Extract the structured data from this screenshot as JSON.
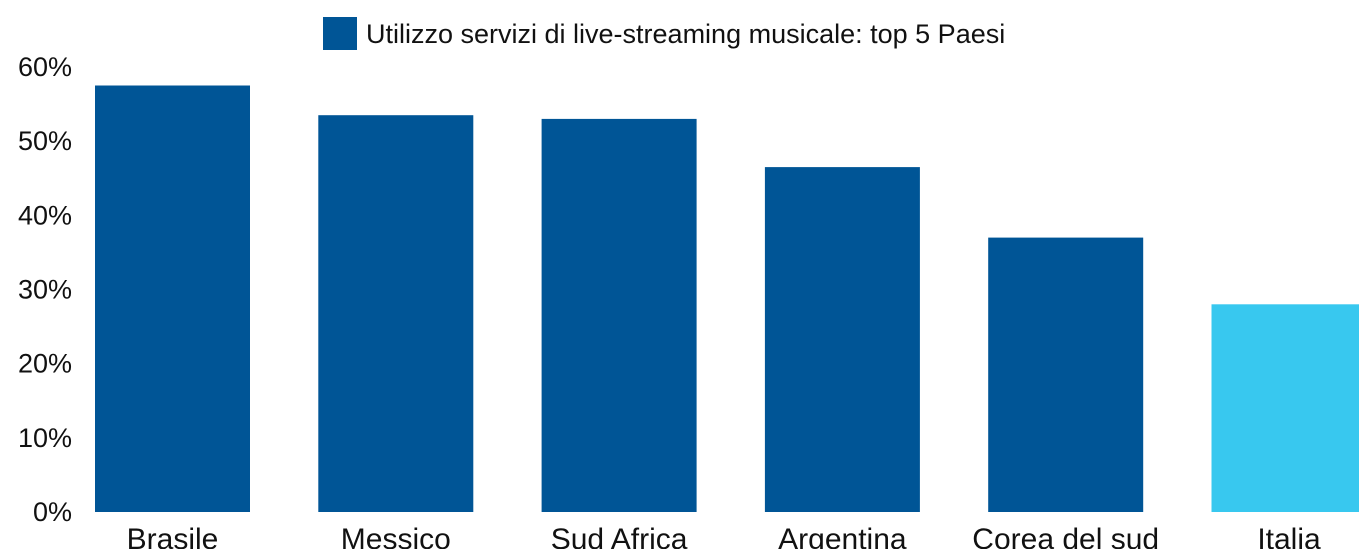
{
  "chart_data": {
    "type": "bar",
    "categories": [
      "Brasile",
      "Messico",
      "Sud Africa",
      "Argentina",
      "Corea del sud",
      "Italia"
    ],
    "series": [
      {
        "name": "Utilizzo servizi di live-streaming musicale: top 5 Paesi",
        "values": [
          57.5,
          53.5,
          53,
          46.5,
          37,
          28
        ]
      }
    ],
    "colors": {
      "series": "#005596",
      "highlight": "#38c8ef"
    },
    "highlight_category": "Italia",
    "y_ticks": [
      "0%",
      "10%",
      "20%",
      "30%",
      "40%",
      "50%",
      "60%"
    ],
    "ylim": [
      0,
      60
    ],
    "grid": false,
    "legend_position": "top"
  }
}
